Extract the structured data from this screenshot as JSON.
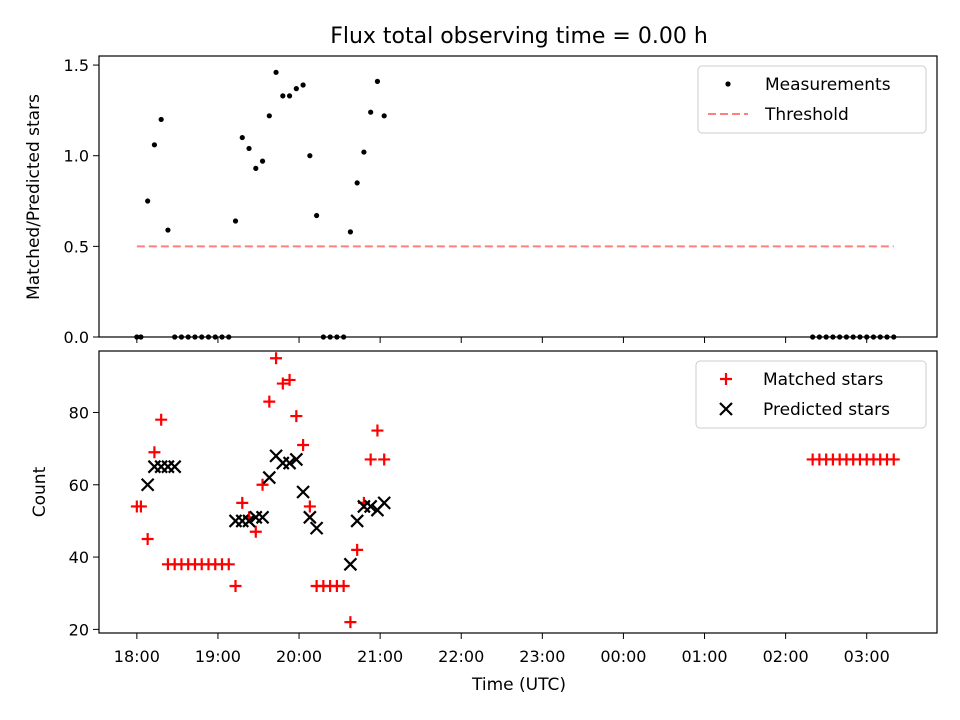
{
  "figure": {
    "title": "Flux total observing time = 0.00 h"
  },
  "chart_data": [
    {
      "type": "scatter",
      "title": "Flux total observing time = 0.00 h",
      "xlabel": "",
      "ylabel": "Matched/Predicted stars",
      "xlim": [
        "17:32",
        "03:52"
      ],
      "ylim": [
        0,
        1.55
      ],
      "yticks": [
        0.0,
        0.5,
        1.0,
        1.5
      ],
      "ytick_labels": [
        "0.0",
        "0.5",
        "1.0",
        "1.5"
      ],
      "legend_position": "top-right",
      "series": [
        {
          "name": "Measurements",
          "marker": "dot",
          "color": "#000000",
          "x": [
            "18:00",
            "18:03",
            "18:08",
            "18:13",
            "18:18",
            "18:23",
            "18:28",
            "18:33",
            "18:38",
            "18:43",
            "18:48",
            "18:53",
            "18:58",
            "19:03",
            "19:08",
            "19:13",
            "19:18",
            "19:23",
            "19:28",
            "19:33",
            "19:38",
            "19:43",
            "19:48",
            "19:53",
            "19:58",
            "20:03",
            "20:08",
            "20:13",
            "20:18",
            "20:23",
            "20:28",
            "20:33",
            "20:38",
            "20:43",
            "20:48",
            "20:53",
            "20:58",
            "21:03",
            "02:20",
            "02:25",
            "02:30",
            "02:35",
            "02:40",
            "02:45",
            "02:50",
            "02:55",
            "03:00",
            "03:05",
            "03:10",
            "03:15",
            "03:20"
          ],
          "y": [
            0.0,
            0.0,
            0.75,
            1.06,
            1.2,
            0.59,
            0.0,
            0.0,
            0.0,
            0.0,
            0.0,
            0.0,
            0.0,
            0.0,
            0.0,
            0.64,
            1.1,
            1.04,
            0.93,
            0.97,
            1.22,
            1.46,
            1.33,
            1.33,
            1.37,
            1.39,
            1.0,
            0.67,
            0.0,
            0.0,
            0.0,
            0.0,
            0.58,
            0.85,
            1.02,
            1.24,
            1.41,
            1.22,
            0.0,
            0.0,
            0.0,
            0.0,
            0.0,
            0.0,
            0.0,
            0.0,
            0.0,
            0.0,
            0.0,
            0.0,
            0.0
          ]
        },
        {
          "name": "Threshold",
          "style": "dashed",
          "color": "#ff7f7f",
          "x": [
            "18:00",
            "03:20"
          ],
          "y": [
            0.5,
            0.5
          ]
        }
      ]
    },
    {
      "type": "scatter",
      "title": "",
      "xlabel": "Time (UTC)",
      "ylabel": "Count",
      "xlim": [
        "17:32",
        "03:52"
      ],
      "ylim": [
        19,
        97
      ],
      "yticks": [
        20,
        40,
        60,
        80
      ],
      "ytick_labels": [
        "20",
        "40",
        "60",
        "80"
      ],
      "xticks": [
        "18:00",
        "19:00",
        "20:00",
        "21:00",
        "22:00",
        "23:00",
        "00:00",
        "01:00",
        "02:00",
        "03:00"
      ],
      "legend_position": "top-right",
      "series": [
        {
          "name": "Matched stars",
          "marker": "plus",
          "color": "#ff0000",
          "x": [
            "18:00",
            "18:03",
            "18:08",
            "18:13",
            "18:18",
            "18:23",
            "18:28",
            "18:33",
            "18:38",
            "18:43",
            "18:48",
            "18:53",
            "18:58",
            "19:03",
            "19:08",
            "19:13",
            "19:18",
            "19:23",
            "19:28",
            "19:33",
            "19:38",
            "19:43",
            "19:48",
            "19:53",
            "19:58",
            "20:03",
            "20:08",
            "20:13",
            "20:18",
            "20:23",
            "20:28",
            "20:33",
            "20:38",
            "20:43",
            "20:48",
            "20:53",
            "20:58",
            "21:03",
            "02:20",
            "02:25",
            "02:30",
            "02:35",
            "02:40",
            "02:45",
            "02:50",
            "02:55",
            "03:00",
            "03:05",
            "03:10",
            "03:15",
            "03:20"
          ],
          "y": [
            54,
            54,
            45,
            69,
            78,
            38,
            38,
            38,
            38,
            38,
            38,
            38,
            38,
            38,
            38,
            32,
            55,
            51,
            47,
            60,
            83,
            95,
            88,
            89,
            79,
            71,
            54,
            32,
            32,
            32,
            32,
            32,
            22,
            42,
            55,
            67,
            75,
            67,
            67,
            67,
            67,
            67,
            67,
            67,
            67,
            67,
            67,
            67,
            67,
            67,
            67
          ]
        },
        {
          "name": "Predicted stars",
          "marker": "x",
          "color": "#000000",
          "x": [
            "18:08",
            "18:13",
            "18:18",
            "18:23",
            "18:28",
            "19:13",
            "19:18",
            "19:23",
            "19:28",
            "19:33",
            "19:38",
            "19:43",
            "19:48",
            "19:53",
            "19:58",
            "20:03",
            "20:08",
            "20:13",
            "20:38",
            "20:43",
            "20:48",
            "20:53",
            "20:58",
            "21:03"
          ],
          "y": [
            60,
            65,
            65,
            65,
            65,
            50,
            50,
            50,
            51,
            51,
            62,
            68,
            66,
            66,
            67,
            58,
            51,
            48,
            38,
            50,
            54,
            54,
            53,
            55
          ]
        }
      ]
    }
  ]
}
